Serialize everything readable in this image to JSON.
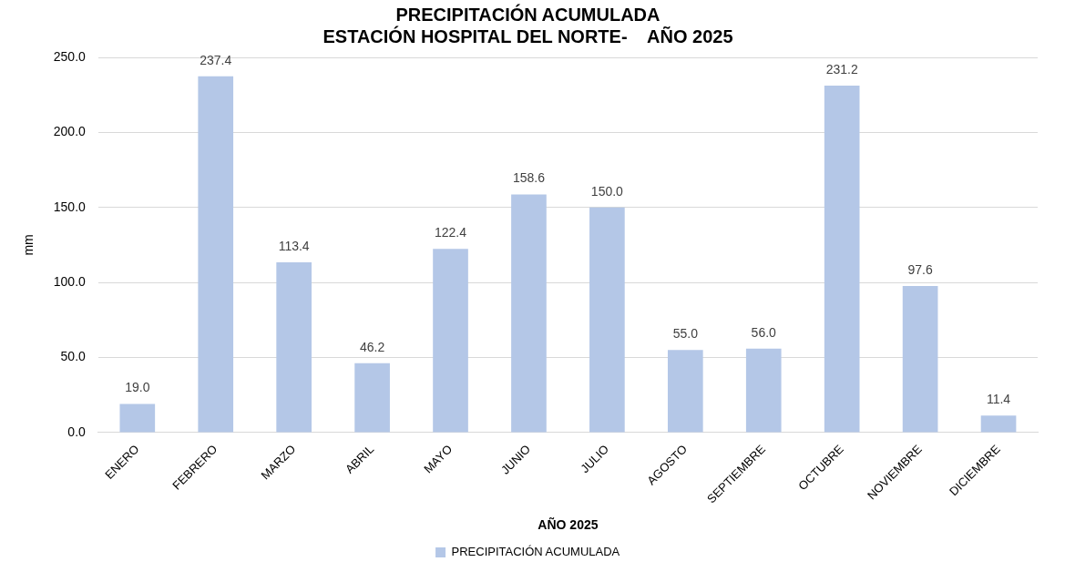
{
  "chart_data": {
    "type": "bar",
    "title": "PRECIPITACIÓN ACUMULADA\nESTACIÓN HOSPITAL DEL NORTE-    AÑO 2025",
    "xlabel": "AÑO 2025",
    "ylabel": "mm",
    "categories": [
      "ENERO",
      "FEBRERO",
      "MARZO",
      "ABRIL",
      "MAYO",
      "JUNIO",
      "JULIO",
      "AGOSTO",
      "SEPTIEMBRE",
      "OCTUBRE",
      "NOVIEMBRE",
      "DICIEMBRE"
    ],
    "series": [
      {
        "name": "PRECIPITACIÓN ACUMULADA",
        "color": "#b4c7e7",
        "values": [
          19.0,
          237.4,
          113.4,
          46.2,
          122.4,
          158.6,
          150.0,
          55.0,
          56.0,
          231.2,
          97.6,
          11.4
        ]
      }
    ],
    "ylim": [
      0,
      250
    ],
    "yticks": [
      {
        "value": 0,
        "label": "0.0"
      },
      {
        "value": 50,
        "label": "50.0"
      },
      {
        "value": 100,
        "label": "100.0"
      },
      {
        "value": 150,
        "label": "150.0"
      },
      {
        "value": 200,
        "label": "200.0"
      },
      {
        "value": 250,
        "label": "250.0"
      }
    ],
    "grid": "y",
    "legend": "bottom",
    "value_labels": [
      "19.0",
      "237.4",
      "113.4",
      "46.2",
      "122.4",
      "158.6",
      "150.0",
      "55.0",
      "56.0",
      "231.2",
      "97.6",
      "11.4"
    ]
  }
}
